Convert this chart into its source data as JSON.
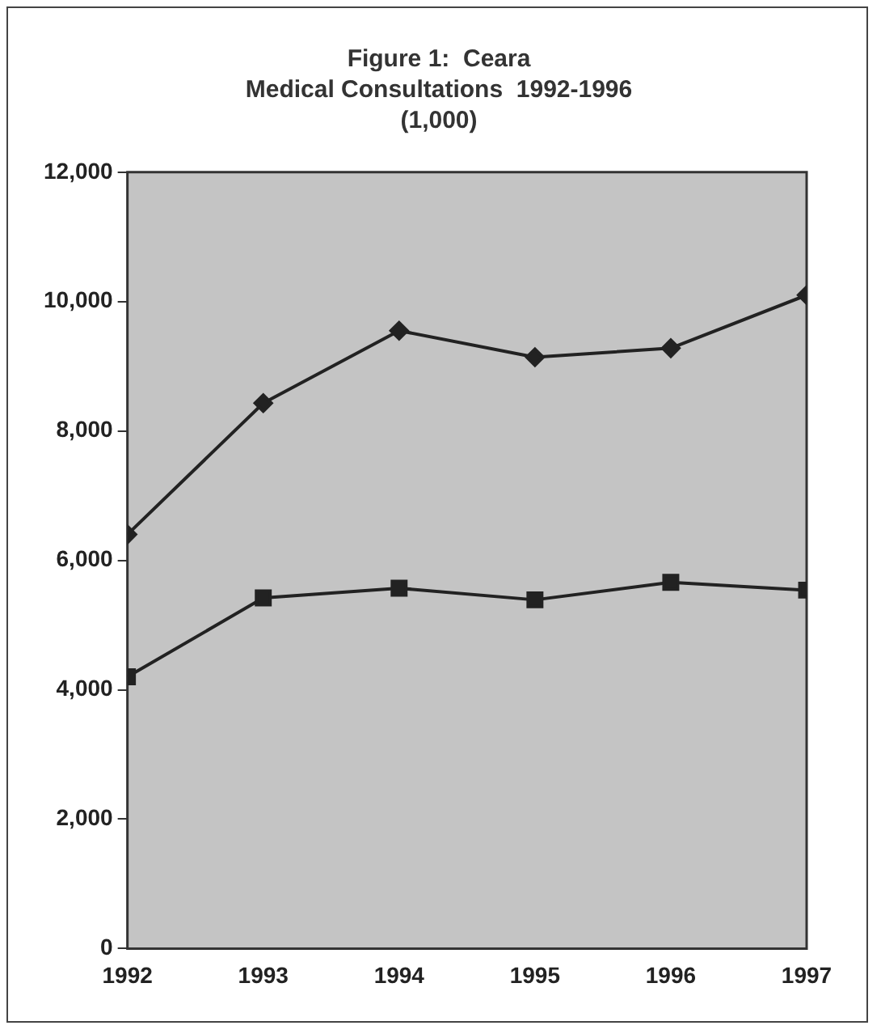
{
  "chart_data": {
    "type": "line",
    "title": [
      "Figure 1:  Ceara",
      "Medical Consultations  1992-1996",
      "(1,000)"
    ],
    "x": [
      1992,
      1993,
      1994,
      1995,
      1996,
      1997
    ],
    "series": [
      {
        "color": "#222222",
        "marker": "diamond",
        "values": [
          6400,
          8430,
          9550,
          9140,
          9280,
          10100
        ]
      },
      {
        "color": "#222222",
        "marker": "square",
        "values": [
          4200,
          5420,
          5570,
          5390,
          5660,
          5540
        ]
      }
    ],
    "xlim": [
      1992,
      1997
    ],
    "xticks": [
      1992,
      1993,
      1994,
      1995,
      1996,
      1997
    ],
    "ylim": [
      0,
      12000
    ],
    "yticks": [
      0,
      {
        "value": 2000,
        "label": "2,000"
      },
      {
        "value": 4000,
        "label": "4,000"
      },
      {
        "value": 6000,
        "label": "6,000"
      },
      {
        "value": 8000,
        "label": "8,000"
      },
      {
        "value": 10000,
        "label": "10,000"
      },
      {
        "value": 12000,
        "label": "12,000"
      }
    ],
    "grid": false,
    "legend": false
  }
}
